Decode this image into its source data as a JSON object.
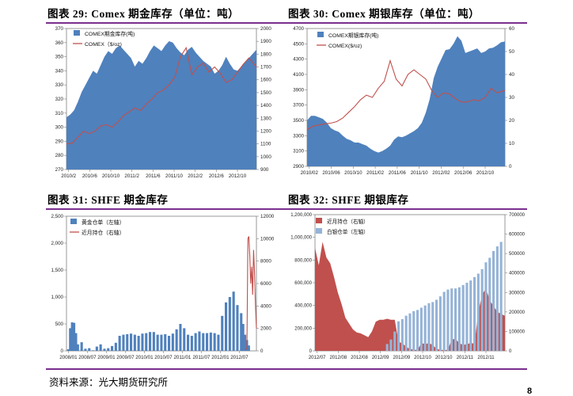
{
  "page": {
    "source": "资料来源：光大期货研究所",
    "page_number": "8"
  },
  "figures": [
    {
      "title": "图表 29:   Comex 期金库存（单位：吨）"
    },
    {
      "title": "图表 30:   Comex 期银库存（单位：吨）"
    },
    {
      "title": "图表 31:   SHFE 期金库存"
    },
    {
      "title": "图表 32:   SHFE 期银库存"
    }
  ],
  "chart_data": [
    {
      "type": "area",
      "id": "c1",
      "colors": {
        "area": "#4f81bd",
        "line": "#c0504d"
      },
      "y_left": {
        "ticks": [
          "270",
          "280",
          "290",
          "300",
          "310",
          "320",
          "330",
          "340",
          "350",
          "360",
          "370"
        ],
        "range": [
          270,
          370
        ]
      },
      "y_right": {
        "ticks": [
          "900",
          "1000",
          "1100",
          "1200",
          "1300",
          "1400",
          "1500",
          "1600",
          "1700",
          "1800",
          "1900",
          "2000"
        ],
        "range": [
          900,
          2000
        ]
      },
      "x_ticks": [
        "2010/2",
        "2010/6",
        "2010/10",
        "2011/2",
        "2011/6",
        "2011/10",
        "2012/2",
        "2012/6",
        "2012/10"
      ],
      "legend": [
        "COMEX期金库存(吨)",
        "COMEX（$/oz)"
      ],
      "series": [
        {
          "name": "COMEX期金库存(吨)",
          "axis": "left",
          "kind": "area",
          "x": [
            0,
            2,
            4,
            6,
            8,
            10,
            12,
            14,
            16,
            18,
            20,
            22,
            24,
            26,
            28,
            30,
            32,
            34,
            36,
            38,
            40,
            42,
            44,
            46,
            48,
            50,
            52,
            54,
            56,
            58,
            60,
            62,
            64,
            66,
            68,
            70,
            72,
            74,
            76,
            78,
            80,
            82,
            84,
            86,
            88,
            90,
            92,
            94,
            96,
            98,
            100
          ],
          "values": [
            307,
            309,
            312,
            318,
            325,
            330,
            335,
            340,
            338,
            344,
            350,
            354,
            352,
            356,
            358,
            355,
            352,
            349,
            343,
            347,
            345,
            349,
            354,
            358,
            356,
            354,
            358,
            361,
            360,
            356,
            353,
            351,
            355,
            357,
            353,
            350,
            347,
            345,
            343,
            338,
            340,
            344,
            350,
            345,
            341,
            340,
            343,
            346,
            349,
            352,
            355
          ]
        },
        {
          "name": "COMEX（$/oz)",
          "axis": "right",
          "kind": "line",
          "x": [
            0,
            3,
            6,
            9,
            12,
            15,
            18,
            21,
            24,
            27,
            30,
            33,
            36,
            39,
            42,
            45,
            48,
            51,
            54,
            57,
            60,
            63,
            66,
            69,
            72,
            75,
            78,
            81,
            84,
            87,
            90,
            93,
            96,
            100
          ],
          "values": [
            1100,
            1105,
            1150,
            1200,
            1180,
            1200,
            1240,
            1250,
            1230,
            1270,
            1320,
            1350,
            1380,
            1360,
            1410,
            1450,
            1500,
            1520,
            1560,
            1620,
            1780,
            1850,
            1640,
            1700,
            1730,
            1660,
            1700,
            1650,
            1580,
            1600,
            1660,
            1720,
            1770,
            1700
          ]
        }
      ]
    },
    {
      "type": "area",
      "id": "c2",
      "colors": {
        "area": "#4f81bd",
        "line": "#c0504d"
      },
      "y_left": {
        "ticks": [
          "2900",
          "3100",
          "3300",
          "3500",
          "3700",
          "3900",
          "4100",
          "4300",
          "4500",
          "4700"
        ],
        "range": [
          2900,
          4700
        ]
      },
      "y_right": {
        "ticks": [
          "0",
          "10",
          "20",
          "30",
          "40",
          "50",
          "60"
        ],
        "range": [
          0,
          60
        ]
      },
      "x_ticks": [
        "2010/02",
        "2010/06",
        "2010/10",
        "2011/02",
        "2011/06",
        "2011/10",
        "2012/02",
        "2012/06",
        "2012/10"
      ],
      "legend": [
        "COMEX期银库存(吨)",
        "COMEX($/oz)"
      ],
      "series": [
        {
          "name": "COMEX期银库存(吨)",
          "axis": "left",
          "kind": "area",
          "x": [
            0,
            2,
            4,
            6,
            8,
            10,
            12,
            14,
            16,
            18,
            20,
            22,
            24,
            26,
            28,
            30,
            32,
            34,
            36,
            38,
            40,
            42,
            44,
            46,
            48,
            50,
            52,
            54,
            56,
            58,
            60,
            62,
            64,
            66,
            68,
            70,
            72,
            74,
            76,
            78,
            80,
            82,
            84,
            86,
            88,
            90,
            92,
            94,
            96,
            98,
            100
          ],
          "values": [
            3500,
            3560,
            3560,
            3540,
            3520,
            3470,
            3400,
            3370,
            3350,
            3300,
            3260,
            3240,
            3210,
            3210,
            3190,
            3170,
            3130,
            3100,
            3080,
            3100,
            3130,
            3170,
            3250,
            3290,
            3280,
            3300,
            3330,
            3360,
            3400,
            3470,
            3600,
            3780,
            4050,
            4200,
            4310,
            4420,
            4430,
            4500,
            4600,
            4540,
            4380,
            4400,
            4420,
            4440,
            4380,
            4400,
            4440,
            4450,
            4480,
            4520,
            4530
          ]
        },
        {
          "name": "COMEX($/oz)",
          "axis": "right",
          "kind": "line",
          "x": [
            0,
            3,
            6,
            9,
            12,
            15,
            18,
            21,
            24,
            27,
            30,
            33,
            36,
            39,
            42,
            45,
            48,
            51,
            54,
            57,
            60,
            63,
            66,
            69,
            72,
            75,
            78,
            81,
            84,
            87,
            90,
            93,
            96,
            100
          ],
          "values": [
            16,
            17.5,
            18,
            18.5,
            18.8,
            19.5,
            21,
            23.5,
            26,
            29,
            31,
            30,
            34,
            37,
            46,
            38,
            35,
            40,
            42,
            40,
            38,
            33,
            30,
            32,
            31.5,
            29.5,
            28,
            28,
            29,
            28.5,
            30,
            34,
            32,
            33
          ]
        }
      ]
    },
    {
      "type": "bar",
      "id": "c3",
      "colors": {
        "bars": "#4f81bd",
        "line": "#c0504d"
      },
      "y_left": {
        "ticks": [
          "0",
          "500",
          "1,000",
          "1,500",
          "2,000",
          "2,500"
        ],
        "range": [
          0,
          2500
        ]
      },
      "y_right": {
        "ticks": [
          "0",
          "2000",
          "4000",
          "6000",
          "8000",
          "10000",
          "12000"
        ],
        "range": [
          0,
          12000
        ]
      },
      "x_ticks": [
        "2008/01",
        "2008/07",
        "2009/01",
        "2009/07",
        "2010/01",
        "2010/07",
        "2011/01",
        "2011/07",
        "2012/01",
        "2012/07"
      ],
      "legend": [
        "黄金仓单（左轴）",
        "近月持仓（右轴）"
      ],
      "series": [
        {
          "name": "黄金仓单（左轴）",
          "axis": "left",
          "kind": "bar",
          "x": [
            1,
            2,
            3,
            4,
            5,
            6,
            8,
            10,
            12,
            14,
            16,
            18,
            20,
            22,
            24,
            26,
            28,
            30,
            32,
            34,
            36,
            38,
            40,
            42,
            44,
            46,
            48,
            50,
            52,
            54,
            56,
            58,
            60,
            62,
            64,
            66,
            68,
            70,
            72,
            74,
            76,
            78,
            80,
            82,
            84,
            86,
            88,
            90,
            92,
            93,
            94,
            95,
            96
          ],
          "values": [
            30,
            420,
            530,
            520,
            330,
            120,
            160,
            40,
            50,
            10,
            80,
            120,
            40,
            50,
            90,
            150,
            280,
            300,
            310,
            320,
            300,
            280,
            320,
            330,
            350,
            350,
            300,
            300,
            310,
            280,
            320,
            400,
            500,
            420,
            300,
            280,
            330,
            360,
            330,
            330,
            340,
            330,
            300,
            650,
            900,
            1000,
            1100,
            850,
            700,
            500,
            300,
            200,
            100
          ]
        },
        {
          "name": "近月持仓（右轴）",
          "axis": "right",
          "kind": "line",
          "x": [
            94,
            95,
            95.5,
            96,
            96.5,
            97,
            97.5,
            98,
            98.5,
            99,
            99.5,
            100
          ],
          "values": [
            100,
            200,
            10000,
            10200,
            8500,
            6000,
            7500,
            5000,
            9000,
            7000,
            4000,
            2000
          ]
        }
      ]
    },
    {
      "type": "bar",
      "id": "c4",
      "colors": {
        "area": "#c0504d",
        "bars": "#95b3d7"
      },
      "y_left": {
        "ticks": [
          "0",
          "200,000",
          "400,000",
          "600,000",
          "800,000",
          "1,000,000",
          "1,200,000"
        ],
        "range": [
          0,
          1200000
        ]
      },
      "y_right": {
        "ticks": [
          "0",
          "100000",
          "200000",
          "300000",
          "400000",
          "500000",
          "600000",
          "700000"
        ],
        "range": [
          0,
          700000
        ]
      },
      "x_ticks": [
        "2012/07",
        "2012/08",
        "2012/08",
        "2012/09",
        "2012/09",
        "2012/10",
        "2012/10",
        "2012/11",
        "2012/11"
      ],
      "legend": [
        "近月持仓（右轴）",
        "白银仓单（左轴）"
      ],
      "series": [
        {
          "name": "近月持仓（右轴）",
          "axis": "right",
          "kind": "area",
          "x": [
            0,
            2,
            4,
            6,
            8,
            10,
            12,
            14,
            16,
            18,
            20,
            22,
            24,
            26,
            28,
            30,
            32,
            34,
            36,
            38,
            40,
            42,
            44,
            46,
            48,
            50,
            52,
            54,
            56,
            58,
            60,
            62,
            64,
            66,
            68,
            70,
            72,
            74,
            76,
            78,
            80,
            82,
            84,
            86,
            88,
            90,
            92,
            94,
            96,
            98,
            100
          ],
          "values": [
            530000,
            440000,
            560000,
            480000,
            450000,
            380000,
            300000,
            240000,
            170000,
            140000,
            110000,
            95000,
            90000,
            80000,
            70000,
            100000,
            150000,
            160000,
            160000,
            165000,
            160000,
            160000,
            45000,
            40000,
            20000,
            10000,
            5000,
            5000,
            40000,
            35000,
            40000,
            30000,
            10000,
            5000,
            4000,
            5000,
            60000,
            60000,
            40000,
            30000,
            35000,
            40000,
            38000,
            200000,
            290000,
            320000,
            260000,
            230000,
            200000,
            190000,
            180000
          ]
        },
        {
          "name": "白银仓单（左轴）",
          "axis": "left",
          "kind": "bar",
          "x": [
            38,
            40,
            42,
            44,
            46,
            48,
            50,
            52,
            54,
            56,
            58,
            60,
            62,
            64,
            66,
            68,
            70,
            72,
            74,
            76,
            78,
            80,
            82,
            84,
            86,
            88,
            90,
            92,
            94,
            96,
            98
          ],
          "values": [
            60000,
            100000,
            170000,
            260000,
            280000,
            310000,
            330000,
            350000,
            360000,
            380000,
            400000,
            420000,
            430000,
            450000,
            480000,
            520000,
            540000,
            550000,
            550000,
            560000,
            580000,
            600000,
            620000,
            650000,
            680000,
            720000,
            780000,
            820000,
            880000,
            920000,
            960000
          ]
        }
      ]
    }
  ]
}
